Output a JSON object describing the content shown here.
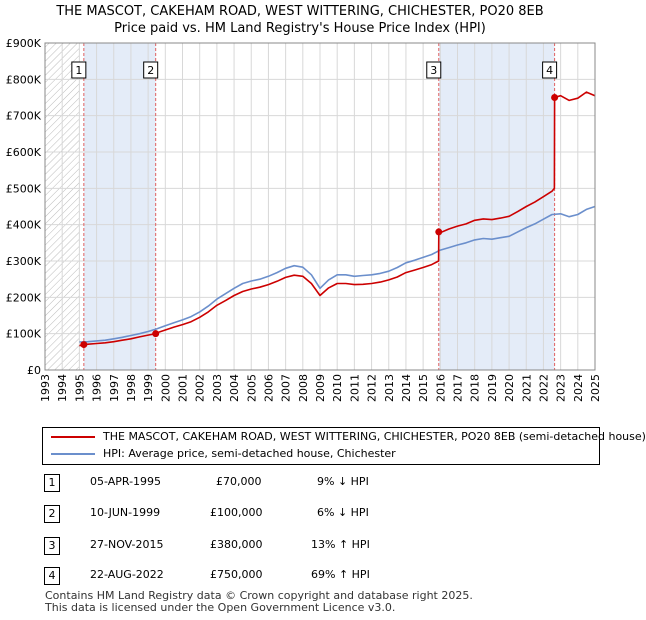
{
  "title_line1": "THE MASCOT, CAKEHAM ROAD, WEST WITTERING, CHICHESTER, PO20 8EB",
  "title_line2": "Price paid vs. HM Land Registry's House Price Index (HPI)",
  "chart_data": {
    "type": "line",
    "title": "THE MASCOT, CAKEHAM ROAD, WEST WITTERING, CHICHESTER, PO20 8EB — Price paid vs. HM Land Registry's House Price Index (HPI)",
    "xlim": [
      1993,
      2025
    ],
    "ylim": [
      0,
      900000
    ],
    "y_ticks": [
      0,
      100000,
      200000,
      300000,
      400000,
      500000,
      600000,
      700000,
      800000,
      900000
    ],
    "y_tick_labels": [
      "£0",
      "£100K",
      "£200K",
      "£300K",
      "£400K",
      "£500K",
      "£600K",
      "£700K",
      "£800K",
      "£900K"
    ],
    "x_tick_labels": [
      "1993",
      "1994",
      "1995",
      "1996",
      "1997",
      "1998",
      "1999",
      "2000",
      "2001",
      "2002",
      "2003",
      "2004",
      "2005",
      "2006",
      "2007",
      "2008",
      "2009",
      "2010",
      "2011",
      "2012",
      "2013",
      "2014",
      "2015",
      "2016",
      "2017",
      "2018",
      "2019",
      "2020",
      "2021",
      "2022",
      "2023",
      "2024",
      "2025"
    ],
    "grid": true,
    "colors": {
      "property": "#cc0000",
      "hpi": "#6b8fcc",
      "shade": "#e4ecf8",
      "marker_line": "#e06060"
    },
    "hpi_series": {
      "name": "HPI: Average price, semi-detached house, Chichester",
      "x": [
        1995.0,
        1995.5,
        1996.0,
        1996.5,
        1997.0,
        1997.5,
        1998.0,
        1998.5,
        1999.0,
        1999.5,
        2000.0,
        2000.5,
        2001.0,
        2001.5,
        2002.0,
        2002.5,
        2003.0,
        2003.5,
        2004.0,
        2004.5,
        2005.0,
        2005.5,
        2006.0,
        2006.5,
        2007.0,
        2007.5,
        2008.0,
        2008.5,
        2009.0,
        2009.5,
        2010.0,
        2010.5,
        2011.0,
        2011.5,
        2012.0,
        2012.5,
        2013.0,
        2013.5,
        2014.0,
        2014.5,
        2015.0,
        2015.5,
        2016.0,
        2016.5,
        2017.0,
        2017.5,
        2018.0,
        2018.5,
        2019.0,
        2019.5,
        2020.0,
        2020.5,
        2021.0,
        2021.5,
        2022.0,
        2022.5,
        2023.0,
        2023.5,
        2024.0,
        2024.5,
        2025.0
      ],
      "values": [
        77000,
        78000,
        80000,
        82000,
        86000,
        90000,
        95000,
        100000,
        106000,
        113000,
        122000,
        130000,
        138000,
        147000,
        160000,
        176000,
        195000,
        210000,
        225000,
        238000,
        245000,
        250000,
        258000,
        268000,
        280000,
        287000,
        283000,
        262000,
        225000,
        248000,
        262000,
        262000,
        258000,
        260000,
        262000,
        266000,
        272000,
        282000,
        295000,
        302000,
        310000,
        318000,
        330000,
        337000,
        344000,
        350000,
        358000,
        362000,
        360000,
        364000,
        368000,
        380000,
        392000,
        402000,
        415000,
        428000,
        430000,
        422000,
        428000,
        442000,
        450000
      ]
    },
    "property_series": {
      "name": "THE MASCOT, CAKEHAM ROAD, WEST WITTERING, CHICHESTER, PO20 8EB (semi-detached house)",
      "x": [
        1995.0,
        1995.26,
        1995.5,
        1996.0,
        1996.5,
        1997.0,
        1997.5,
        1998.0,
        1998.5,
        1999.0,
        1999.44,
        1999.5,
        2000.0,
        2000.5,
        2001.0,
        2001.5,
        2002.0,
        2002.5,
        2003.0,
        2003.5,
        2004.0,
        2004.5,
        2005.0,
        2005.5,
        2006.0,
        2006.5,
        2007.0,
        2007.5,
        2008.0,
        2008.5,
        2009.0,
        2009.5,
        2010.0,
        2010.5,
        2011.0,
        2011.5,
        2012.0,
        2012.5,
        2013.0,
        2013.5,
        2014.0,
        2014.5,
        2015.0,
        2015.5,
        2015.9,
        2015.91,
        2016.0,
        2016.5,
        2017.0,
        2017.5,
        2018.0,
        2018.5,
        2019.0,
        2019.5,
        2020.0,
        2020.5,
        2021.0,
        2021.5,
        2022.0,
        2022.5,
        2022.64,
        2022.65,
        2023.0,
        2023.5,
        2024.0,
        2024.5,
        2025.0
      ],
      "values": [
        67000,
        70000,
        71000,
        73000,
        75000,
        78000,
        82000,
        86000,
        91000,
        96000,
        100000,
        102000,
        110000,
        118000,
        125000,
        133000,
        145000,
        160000,
        178000,
        191000,
        205000,
        216000,
        223000,
        228000,
        235000,
        244000,
        255000,
        261000,
        258000,
        238000,
        205000,
        226000,
        238000,
        238000,
        235000,
        236000,
        238000,
        242000,
        248000,
        256000,
        268000,
        275000,
        282000,
        290000,
        300000,
        380000,
        378000,
        388000,
        396000,
        402000,
        412000,
        416000,
        414000,
        418000,
        423000,
        436000,
        450000,
        462000,
        477000,
        492000,
        500000,
        750000,
        755000,
        742000,
        748000,
        765000,
        755000
      ]
    },
    "sales": [
      {
        "label": "1",
        "date": "05-APR-1995",
        "x": 1995.26,
        "price": 70000
      },
      {
        "label": "2",
        "date": "10-JUN-1999",
        "x": 1999.44,
        "price": 100000
      },
      {
        "label": "3",
        "date": "27-NOV-2015",
        "x": 2015.91,
        "price": 380000
      },
      {
        "label": "4",
        "date": "22-AUG-2022",
        "x": 2022.65,
        "price": 750000
      }
    ]
  },
  "legend": {
    "property": "THE MASCOT, CAKEHAM ROAD, WEST WITTERING, CHICHESTER, PO20 8EB (semi-detached house)",
    "hpi": "HPI: Average price, semi-detached house, Chichester"
  },
  "transactions": [
    {
      "num": "1",
      "date": "05-APR-1995",
      "price": "£70,000",
      "hpi": "9% ↓ HPI"
    },
    {
      "num": "2",
      "date": "10-JUN-1999",
      "price": "£100,000",
      "hpi": "6% ↓ HPI"
    },
    {
      "num": "3",
      "date": "27-NOV-2015",
      "price": "£380,000",
      "hpi": "13% ↑ HPI"
    },
    {
      "num": "4",
      "date": "22-AUG-2022",
      "price": "£750,000",
      "hpi": "69% ↑ HPI"
    }
  ],
  "footer": {
    "line1": "Contains HM Land Registry data © Crown copyright and database right 2025.",
    "line2": "This data is licensed under the Open Government Licence v3.0."
  }
}
